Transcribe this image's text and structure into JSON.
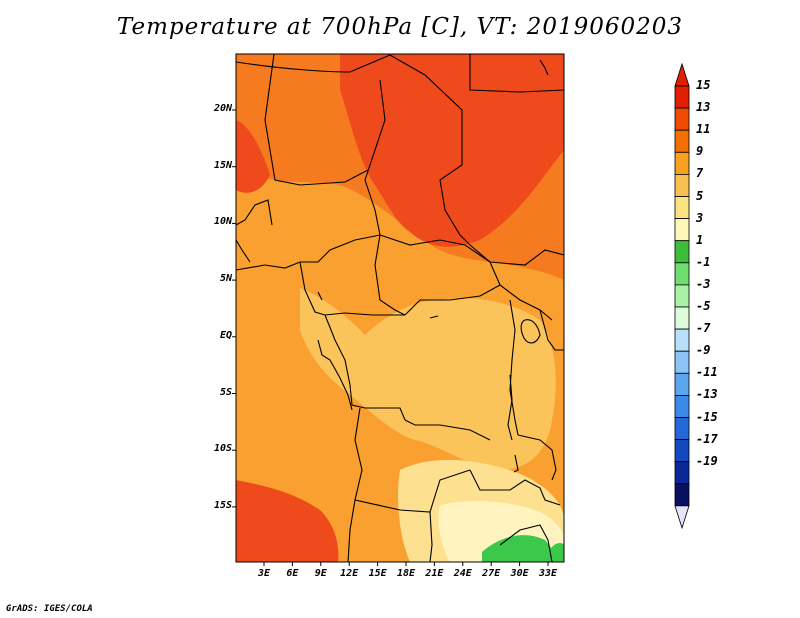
{
  "title": "Temperature at 700hPa [C], VT: 2019060203",
  "credit": "GrADS: IGES/COLA",
  "map": {
    "region": "Central Africa",
    "lat_labels": [
      "20N",
      "15N",
      "10N",
      "5N",
      "EQ",
      "5S",
      "10S",
      "15S"
    ],
    "lon_labels": [
      "3E",
      "6E",
      "9E",
      "12E",
      "15E",
      "18E",
      "21E",
      "24E",
      "27E",
      "30E",
      "33E"
    ]
  },
  "colorbar": {
    "labels": [
      "15",
      "13",
      "11",
      "9",
      "7",
      "5",
      "3",
      "1",
      "-1",
      "-3",
      "-5",
      "-7",
      "-9",
      "-11",
      "-13",
      "-15",
      "-17",
      "-19"
    ],
    "colors": [
      "#e02000",
      "#f04c00",
      "#f46e00",
      "#f8a020",
      "#f8c050",
      "#fbe480",
      "#fdf8b8",
      "#3cbe3c",
      "#6ede6e",
      "#a8f2a8",
      "#dcfcdc",
      "#b8e0fc",
      "#8cc4f6",
      "#5ca6f0",
      "#3c8ae8",
      "#2468d8",
      "#1448c0",
      "#0c2898",
      "#081060"
    ],
    "over_color": "#e02000",
    "under_color": "#e4e4fc"
  },
  "palette": {
    "hot": "#ef4a1c",
    "warm": "#f57a20",
    "mid": "#f9a030",
    "mild": "#fbc45a",
    "cool": "#fde090",
    "pale": "#fff4c0",
    "green": "#3cc84a",
    "border": "#000000"
  }
}
